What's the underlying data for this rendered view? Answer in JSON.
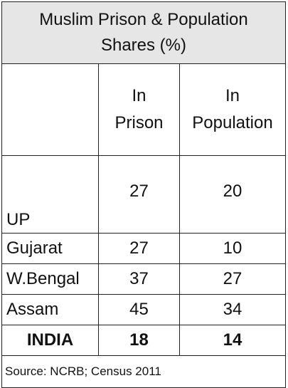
{
  "chart_data": {
    "type": "table",
    "title": "Muslim Prison & Population Shares (%)",
    "title_lines": [
      "Muslim Prison & Population",
      "Shares (%)"
    ],
    "columns": [
      {
        "label": "",
        "lines": []
      },
      {
        "label": "In Prison",
        "lines": [
          "In",
          "Prison"
        ]
      },
      {
        "label": "In Population",
        "lines": [
          "In",
          "Population"
        ]
      }
    ],
    "rows": [
      {
        "label": "UP",
        "in_prison": 27,
        "in_population": 20
      },
      {
        "label": "Gujarat",
        "in_prison": 27,
        "in_population": 10
      },
      {
        "label": "W.Bengal",
        "in_prison": 37,
        "in_population": 27
      },
      {
        "label": "Assam",
        "in_prison": 45,
        "in_population": 34
      },
      {
        "label": "INDIA",
        "in_prison": 18,
        "in_population": 14,
        "bold": true
      }
    ],
    "source": "Source: NCRB; Census 2011"
  },
  "colors": {
    "title_background": "#e6e6e6",
    "border": "#222222",
    "text": "#111111"
  }
}
